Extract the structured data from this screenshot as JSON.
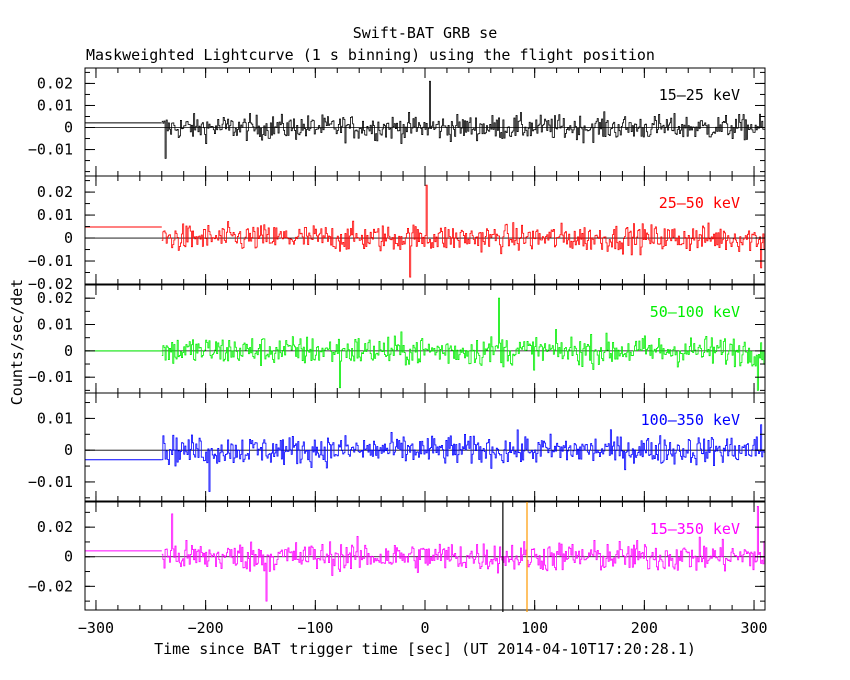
{
  "chart_data": {
    "type": "line",
    "title": "Swift-BAT GRB se",
    "subtitle": "Maskweighted Lightcurve (1 s binning) using the flight position",
    "xlabel": "Time since BAT trigger time [sec] (UT 2014-04-10T17:20:28.1)",
    "ylabel": "Counts/sec/det",
    "xlim": [
      -310,
      310
    ],
    "x_ticks": [
      -300,
      -200,
      -100,
      0,
      100,
      200,
      300
    ],
    "x_tick_labels": [
      "−300",
      "−200",
      "−100",
      "0",
      "100",
      "200",
      "300"
    ],
    "data_start": -240,
    "data_end": 309,
    "markers": [
      {
        "x": 71,
        "color": "#000000"
      },
      {
        "x": 93,
        "color": "#ff9900"
      }
    ],
    "panels": [
      {
        "band": "15–25 keV",
        "color": "#000000",
        "ylim": [
          -0.022,
          0.027
        ],
        "y_ticks": [
          0.02,
          0.01,
          0,
          -0.01
        ],
        "y_tick_labels": [
          "0.02",
          "0.01",
          "0",
          "−0.01"
        ],
        "noise": 0.0055,
        "pre_level": 0.0021,
        "features": [
          {
            "x": -237,
            "y": -0.014
          },
          {
            "x": 4,
            "y": 0.021
          }
        ]
      },
      {
        "band": "25–50 keV",
        "color": "#ff0000",
        "ylim": [
          -0.02,
          0.027
        ],
        "y_ticks": [
          0.02,
          0.01,
          0,
          -0.01,
          -0.02
        ],
        "y_tick_labels": [
          "0.02",
          "0.01",
          "0",
          "−0.01",
          "−0.02"
        ],
        "noise": 0.0058,
        "pre_level": 0.0048,
        "features": [
          {
            "x": 1,
            "y": 0.023
          },
          {
            "x": -14,
            "y": -0.017
          },
          {
            "x": 306,
            "y": -0.013
          }
        ]
      },
      {
        "band": "50–100 keV",
        "color": "#00ee00",
        "ylim": [
          -0.016,
          0.025
        ],
        "y_ticks": [
          0.02,
          0.01,
          0,
          -0.01
        ],
        "y_tick_labels": [
          "0.02",
          "0.01",
          "0",
          "−0.01"
        ],
        "noise": 0.0055,
        "pre_level": 0.0,
        "features": [
          {
            "x": 67,
            "y": 0.02
          },
          {
            "x": -78,
            "y": -0.014
          },
          {
            "x": 303,
            "y": -0.015
          }
        ]
      },
      {
        "band": "100–350 keV",
        "color": "#0000ff",
        "ylim": [
          -0.016,
          0.018
        ],
        "y_ticks": [
          0.01,
          0,
          -0.01
        ],
        "y_tick_labels": [
          "0.01",
          "0",
          "−0.01"
        ],
        "noise": 0.0045,
        "pre_level": -0.003,
        "features": [
          {
            "x": -197,
            "y": -0.013
          },
          {
            "x": 306,
            "y": 0.008
          }
        ]
      },
      {
        "band": "15–350 keV",
        "color": "#ff00ff",
        "ylim": [
          -0.036,
          0.037
        ],
        "y_ticks": [
          0.02,
          0,
          -0.02
        ],
        "y_tick_labels": [
          "0.02",
          "0",
          "−0.02"
        ],
        "noise": 0.01,
        "pre_level": 0.004,
        "features": [
          {
            "x": -231,
            "y": 0.029
          },
          {
            "x": 303,
            "y": 0.034
          },
          {
            "x": -145,
            "y": -0.03
          }
        ]
      }
    ]
  }
}
